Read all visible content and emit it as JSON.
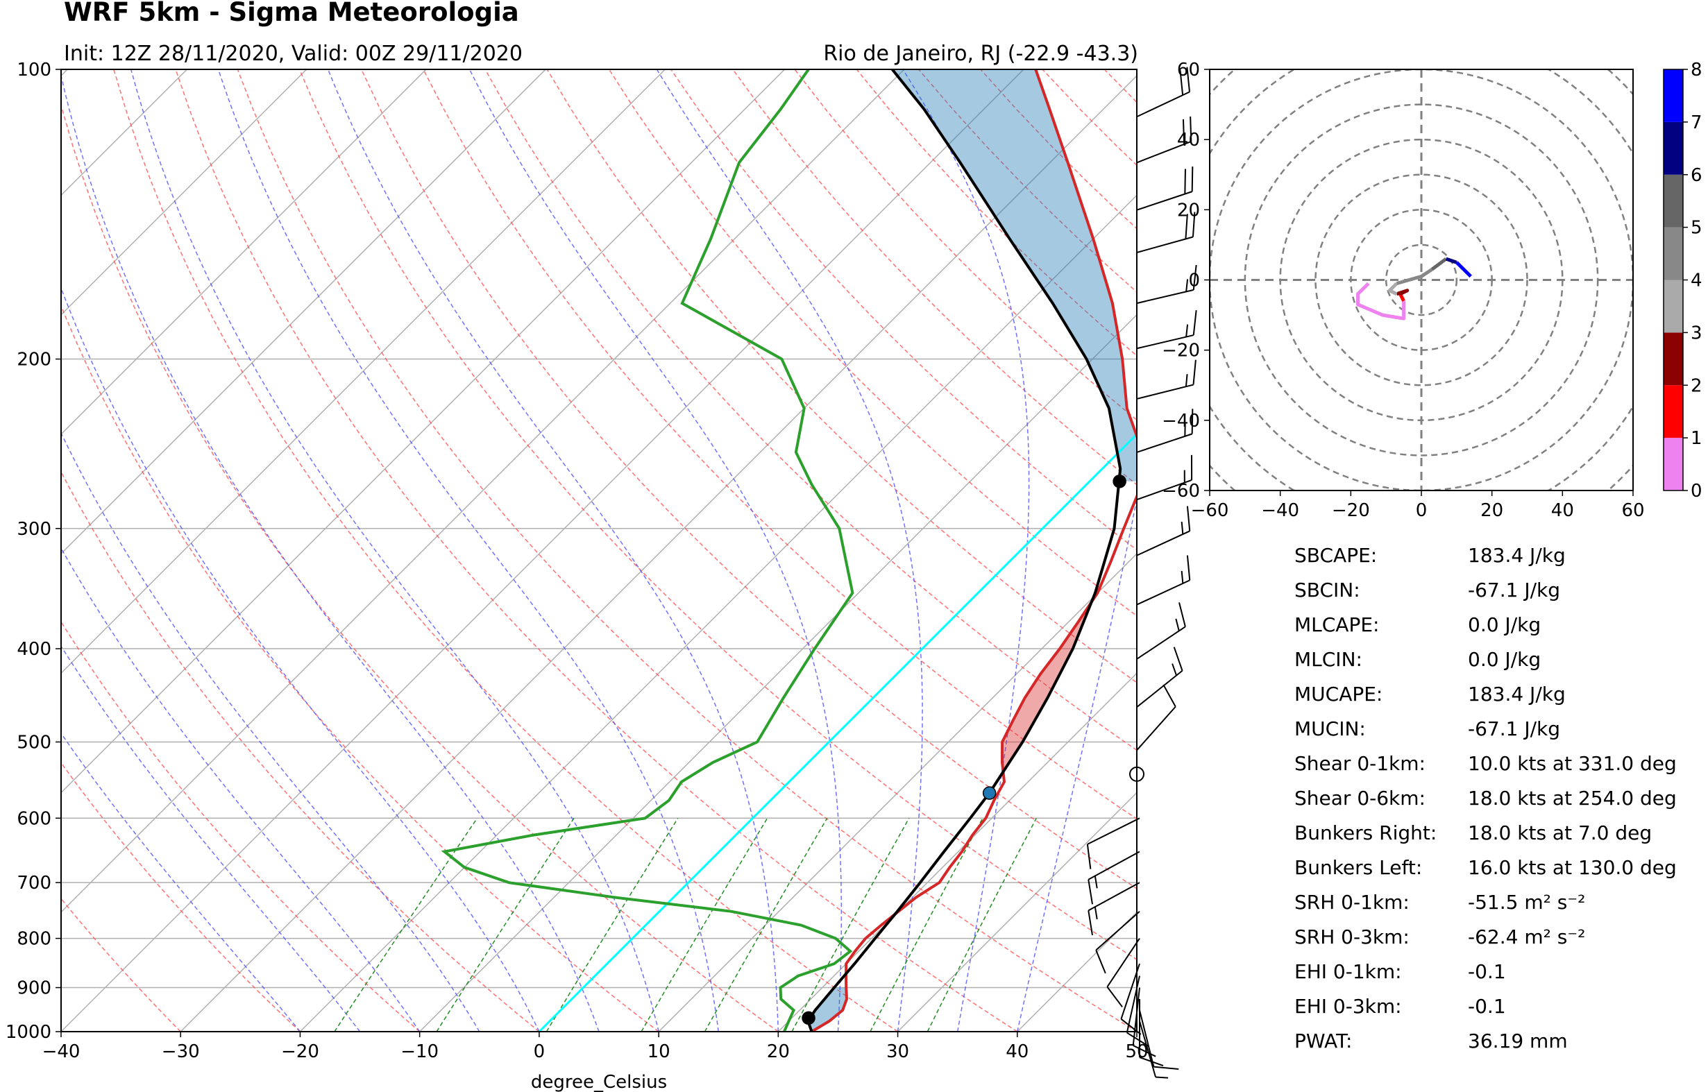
{
  "title": "WRF 5km - Sigma Meteorologia",
  "subtitle_left": "Init: 12Z 28/11/2020, Valid: 00Z 29/11/2020",
  "subtitle_right": "Rio de Janeiro, RJ (-22.9 -43.3)",
  "chart_data": [
    {
      "type": "line",
      "name": "skew-t",
      "xlabel": "degree_Celsius",
      "x_range": [
        -40,
        50
      ],
      "y_range": [
        1000,
        100
      ],
      "y_scale": "log",
      "x_ticks": [
        -40,
        -30,
        -20,
        -10,
        0,
        10,
        20,
        30,
        40,
        50
      ],
      "y_ticks": [
        100,
        200,
        300,
        400,
        500,
        600,
        700,
        800,
        900,
        1000
      ],
      "grid": true,
      "temperature": [
        {
          "p": 1000,
          "t": 22.8
        },
        {
          "p": 975,
          "t": 23.4
        },
        {
          "p": 950,
          "t": 23.6
        },
        {
          "p": 925,
          "t": 23.0
        },
        {
          "p": 900,
          "t": 22.0
        },
        {
          "p": 875,
          "t": 21.0
        },
        {
          "p": 850,
          "t": 20.0
        },
        {
          "p": 825,
          "t": 19.7
        },
        {
          "p": 800,
          "t": 19.5
        },
        {
          "p": 775,
          "t": 19.7
        },
        {
          "p": 750,
          "t": 20.0
        },
        {
          "p": 725,
          "t": 20.3
        },
        {
          "p": 700,
          "t": 21.0
        },
        {
          "p": 675,
          "t": 20.6
        },
        {
          "p": 650,
          "t": 20.3
        },
        {
          "p": 625,
          "t": 19.8
        },
        {
          "p": 600,
          "t": 19.5
        },
        {
          "p": 575,
          "t": 18.7
        },
        {
          "p": 550,
          "t": 18.0
        },
        {
          "p": 525,
          "t": 16.2
        },
        {
          "p": 500,
          "t": 14.5
        },
        {
          "p": 475,
          "t": 13.6
        },
        {
          "p": 450,
          "t": 12.7
        },
        {
          "p": 425,
          "t": 12.0
        },
        {
          "p": 400,
          "t": 11.5
        },
        {
          "p": 375,
          "t": 10.8
        },
        {
          "p": 350,
          "t": 10.0
        },
        {
          "p": 325,
          "t": 8.5
        },
        {
          "p": 300,
          "t": 6.8
        },
        {
          "p": 275,
          "t": 5.0
        },
        {
          "p": 250,
          "t": 2.0
        },
        {
          "p": 225,
          "t": -3.0
        },
        {
          "p": 200,
          "t": -7.5
        },
        {
          "p": 175,
          "t": -13.0
        },
        {
          "p": 150,
          "t": -20.0
        },
        {
          "p": 125,
          "t": -28.5
        },
        {
          "p": 110,
          "t": -34.5
        },
        {
          "p": 100,
          "t": -39.0
        }
      ],
      "dewpoint": [
        {
          "p": 1000,
          "t": 20.5
        },
        {
          "p": 975,
          "t": 20.0
        },
        {
          "p": 950,
          "t": 19.5
        },
        {
          "p": 925,
          "t": 17.5
        },
        {
          "p": 900,
          "t": 16.5
        },
        {
          "p": 875,
          "t": 17.0
        },
        {
          "p": 850,
          "t": 19.0
        },
        {
          "p": 825,
          "t": 19.3
        },
        {
          "p": 800,
          "t": 17.0
        },
        {
          "p": 775,
          "t": 13.0
        },
        {
          "p": 750,
          "t": 6.0
        },
        {
          "p": 725,
          "t": -5.0
        },
        {
          "p": 700,
          "t": -15.0
        },
        {
          "p": 675,
          "t": -20.0
        },
        {
          "p": 650,
          "t": -23.0
        },
        {
          "p": 625,
          "t": -17.0
        },
        {
          "p": 600,
          "t": -9.0
        },
        {
          "p": 575,
          "t": -8.5
        },
        {
          "p": 550,
          "t": -9.0
        },
        {
          "p": 525,
          "t": -8.0
        },
        {
          "p": 500,
          "t": -6.0
        },
        {
          "p": 450,
          "t": -7.5
        },
        {
          "p": 400,
          "t": -9.0
        },
        {
          "p": 350,
          "t": -10.5
        },
        {
          "p": 300,
          "t": -17.0
        },
        {
          "p": 270,
          "t": -23.0
        },
        {
          "p": 250,
          "t": -27.0
        },
        {
          "p": 225,
          "t": -30.0
        },
        {
          "p": 200,
          "t": -36.0
        },
        {
          "p": 175,
          "t": -49.0
        },
        {
          "p": 150,
          "t": -52.0
        },
        {
          "p": 125,
          "t": -56.0
        },
        {
          "p": 110,
          "t": -57.0
        },
        {
          "p": 100,
          "t": -58.0
        }
      ],
      "parcel": [
        {
          "p": 1000,
          "t": 22.8
        },
        {
          "p": 975,
          "t": 21.6
        },
        {
          "p": 950,
          "t": 21.3
        },
        {
          "p": 900,
          "t": 21.0
        },
        {
          "p": 850,
          "t": 20.7
        },
        {
          "p": 800,
          "t": 20.3
        },
        {
          "p": 750,
          "t": 19.9
        },
        {
          "p": 700,
          "t": 19.4
        },
        {
          "p": 650,
          "t": 18.8
        },
        {
          "p": 600,
          "t": 18.2
        },
        {
          "p": 565,
          "t": 17.7
        },
        {
          "p": 500,
          "t": 16.2
        },
        {
          "p": 450,
          "t": 14.6
        },
        {
          "p": 400,
          "t": 12.6
        },
        {
          "p": 350,
          "t": 9.8
        },
        {
          "p": 300,
          "t": 6.0
        },
        {
          "p": 260,
          "t": 1.5
        },
        {
          "p": 225,
          "t": -4.5
        },
        {
          "p": 200,
          "t": -10.5
        },
        {
          "p": 175,
          "t": -18.0
        },
        {
          "p": 150,
          "t": -27.0
        },
        {
          "p": 125,
          "t": -37.5
        },
        {
          "p": 110,
          "t": -45.0
        },
        {
          "p": 100,
          "t": -51.0
        }
      ],
      "freezing_line": [
        {
          "p": 1000,
          "t": 0
        },
        {
          "p": 100,
          "t": 0
        }
      ],
      "markers": [
        {
          "name": "LCL",
          "p": 968,
          "t": 21.4,
          "color": "#000000"
        },
        {
          "name": "LFC",
          "p": 565,
          "t": 17.7,
          "color": "#1f77b4"
        },
        {
          "name": "EL",
          "p": 268,
          "t": 2.5,
          "color": "#000000"
        }
      ],
      "colors": {
        "temperature": "#d62728",
        "dewpoint": "#2ca02c",
        "parcel": "#000000",
        "cape": "#1f77b4",
        "cin": "#d62728",
        "freezing": "#00ffff",
        "dry_adiabat": "#ff4d4d",
        "moist_adiabat": "#4d4dff",
        "mixing_ratio": "#228b22"
      }
    },
    {
      "type": "line",
      "name": "hodograph",
      "x_range": [
        -60,
        60
      ],
      "y_range": [
        -60,
        60
      ],
      "x_ticks": [
        -60,
        -40,
        -20,
        0,
        20,
        40,
        60
      ],
      "y_ticks": [
        -60,
        -40,
        -20,
        0,
        20,
        40,
        60
      ],
      "ring_spacing": 10,
      "segments": [
        {
          "height": "0-1 km",
          "color": "#ee82ee",
          "points": [
            [
              -15,
              -1
            ],
            [
              -18,
              -4
            ],
            [
              -18,
              -7
            ],
            [
              -11,
              -10
            ],
            [
              -5,
              -11
            ],
            [
              -5,
              -6
            ]
          ]
        },
        {
          "height": "1-2 km",
          "color": "#ff0000",
          "points": [
            [
              -5,
              -6
            ],
            [
              -6,
              -4
            ]
          ]
        },
        {
          "height": "2-3 km",
          "color": "#8b0000",
          "points": [
            [
              -6,
              -4
            ],
            [
              -4,
              -3
            ],
            [
              -7,
              -4
            ]
          ]
        },
        {
          "height": "3-4 km",
          "color": "#aaaaaa",
          "points": [
            [
              -7,
              -4
            ],
            [
              -9,
              -3
            ],
            [
              -7,
              -1
            ]
          ]
        },
        {
          "height": "4-5 km",
          "color": "#888888",
          "points": [
            [
              -7,
              -1
            ],
            [
              0,
              1
            ],
            [
              3,
              3
            ]
          ]
        },
        {
          "height": "5-6 km",
          "color": "#666666",
          "points": [
            [
              3,
              3
            ],
            [
              7,
              6
            ]
          ]
        },
        {
          "height": "6-7 km",
          "color": "#000080",
          "points": [
            [
              7,
              6
            ],
            [
              10,
              5
            ]
          ]
        },
        {
          "height": "7-8 km",
          "color": "#0000ff",
          "points": [
            [
              10,
              5
            ],
            [
              14,
              1
            ]
          ]
        }
      ],
      "colorbar": {
        "ticks": [
          "0",
          "1",
          "2",
          "3",
          "4",
          "5",
          "6",
          "7",
          "8"
        ],
        "colors": [
          "#ee82ee",
          "#ff0000",
          "#8b0000",
          "#aaaaaa",
          "#888888",
          "#666666",
          "#000080",
          "#0000ff"
        ]
      }
    }
  ],
  "wind_barbs": {
    "upper": [
      {
        "p": 975,
        "u": -2,
        "v": 7
      },
      {
        "p": 950,
        "u": -2,
        "v": 8
      },
      {
        "p": 925,
        "u": 0,
        "v": 9
      },
      {
        "p": 900,
        "u": 1,
        "v": 9
      },
      {
        "p": 875,
        "u": 2,
        "v": 9
      },
      {
        "p": 850,
        "u": 3,
        "v": 9
      },
      {
        "p": 800,
        "u": 6,
        "v": 9
      },
      {
        "p": 750,
        "u": 9,
        "v": 8
      },
      {
        "p": 700,
        "u": 11,
        "v": 6
      },
      {
        "p": 650,
        "u": 11,
        "v": 6
      },
      {
        "p": 600,
        "u": 10,
        "v": 5
      }
    ],
    "lower": [
      {
        "p": 510,
        "u": -8,
        "v": -9
      },
      {
        "p": 460,
        "u": -10,
        "v": -8
      },
      {
        "p": 410,
        "u": -12,
        "v": -8
      },
      {
        "p": 360,
        "u": -13,
        "v": -6
      },
      {
        "p": 320,
        "u": -13,
        "v": -6
      },
      {
        "p": 280,
        "u": -14,
        "v": -5
      },
      {
        "p": 250,
        "u": -15,
        "v": -5
      },
      {
        "p": 220,
        "u": -16,
        "v": -4
      },
      {
        "p": 195,
        "u": -17,
        "v": -4
      },
      {
        "p": 175,
        "u": -17,
        "v": -4
      },
      {
        "p": 155,
        "u": -18,
        "v": -5
      },
      {
        "p": 140,
        "u": -18,
        "v": -6
      },
      {
        "p": 125,
        "u": -18,
        "v": -7
      },
      {
        "p": 112,
        "u": -17,
        "v": -8
      }
    ],
    "calm_marker_p": 540
  },
  "indices": [
    {
      "label": "SBCAPE:",
      "value": "183.4 J/kg"
    },
    {
      "label": "SBCIN:",
      "value": "-67.1 J/kg"
    },
    {
      "label": "MLCAPE:",
      "value": "0.0 J/kg"
    },
    {
      "label": "MLCIN:",
      "value": "0.0 J/kg"
    },
    {
      "label": "MUCAPE:",
      "value": "183.4 J/kg"
    },
    {
      "label": "MUCIN:",
      "value": "-67.1 J/kg"
    },
    {
      "label": "Shear 0-1km:",
      "value": "10.0 kts at 331.0 deg"
    },
    {
      "label": "Shear 0-6km:",
      "value": "18.0 kts at 254.0 deg"
    },
    {
      "label": "Bunkers Right:",
      "value": "18.0 kts at 7.0 deg"
    },
    {
      "label": "Bunkers Left:",
      "value": "16.0 kts at 130.0 deg"
    },
    {
      "label": "SRH 0-1km:",
      "value": "-51.5 m² s⁻²"
    },
    {
      "label": "SRH 0-3km:",
      "value": "-62.4 m² s⁻²"
    },
    {
      "label": "EHI 0-1km:",
      "value": "-0.1"
    },
    {
      "label": "EHI 0-3km:",
      "value": "-0.1"
    },
    {
      "label": "PWAT:",
      "value": "36.19 mm"
    }
  ]
}
